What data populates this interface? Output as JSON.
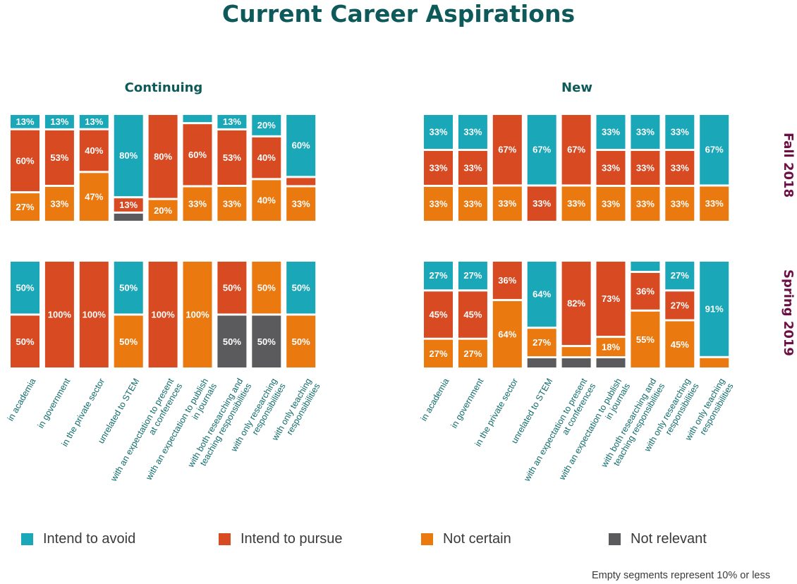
{
  "title": "Current Career Aspirations",
  "footnote": "Empty segments represent 10% or less",
  "colors": {
    "avoid": "#1aa7b8",
    "pursue": "#d74a22",
    "uncertain": "#ea7a10",
    "notrelevant": "#5b5b5d"
  },
  "legend": [
    {
      "key": "avoid",
      "label": "Intend to avoid"
    },
    {
      "key": "pursue",
      "label": "Intend to pursue"
    },
    {
      "key": "uncertain",
      "label": "Not certain"
    },
    {
      "key": "notrelevant",
      "label": "Not relevant"
    }
  ],
  "chart_data": {
    "type": "bar",
    "stacked": true,
    "normalized": true,
    "columns": [
      "Continuing",
      "New"
    ],
    "rows": [
      "Fall 2018",
      "Spring 2019"
    ],
    "categories": [
      "in academia",
      "in government",
      "in the private sector",
      "unrelated to STEM",
      "with an expectation to present\nat conferences",
      "with an expectation to publish\nin journals",
      "with both researching and\nteaching responsibilities",
      "with only researching\nresponsibilities",
      "with only teaching\nresponsibilities"
    ],
    "series_order": [
      "avoid",
      "pursue",
      "uncertain",
      "notrelevant"
    ],
    "panels": [
      {
        "column": "Continuing",
        "row": "Fall 2018",
        "bars": [
          {
            "avoid": 13,
            "pursue": 60,
            "uncertain": 27,
            "notrelevant": 0
          },
          {
            "avoid": 13,
            "pursue": 53,
            "uncertain": 33,
            "notrelevant": 0
          },
          {
            "avoid": 13,
            "pursue": 40,
            "uncertain": 47,
            "notrelevant": 0
          },
          {
            "avoid": 80,
            "pursue": 13,
            "uncertain": 0,
            "notrelevant": 7
          },
          {
            "avoid": 0,
            "pursue": 80,
            "uncertain": 20,
            "notrelevant": 0
          },
          {
            "avoid": 7,
            "pursue": 60,
            "uncertain": 33,
            "notrelevant": 0
          },
          {
            "avoid": 13,
            "pursue": 53,
            "uncertain": 33,
            "notrelevant": 0
          },
          {
            "avoid": 20,
            "pursue": 40,
            "uncertain": 40,
            "notrelevant": 0
          },
          {
            "avoid": 60,
            "pursue": 7,
            "uncertain": 33,
            "notrelevant": 0
          }
        ]
      },
      {
        "column": "New",
        "row": "Fall 2018",
        "bars": [
          {
            "avoid": 33,
            "pursue": 33,
            "uncertain": 33,
            "notrelevant": 0
          },
          {
            "avoid": 33,
            "pursue": 33,
            "uncertain": 33,
            "notrelevant": 0
          },
          {
            "avoid": 0,
            "pursue": 67,
            "uncertain": 33,
            "notrelevant": 0
          },
          {
            "avoid": 67,
            "pursue": 33,
            "uncertain": 0,
            "notrelevant": 0
          },
          {
            "avoid": 0,
            "pursue": 67,
            "uncertain": 33,
            "notrelevant": 0
          },
          {
            "avoid": 33,
            "pursue": 33,
            "uncertain": 33,
            "notrelevant": 0
          },
          {
            "avoid": 33,
            "pursue": 33,
            "uncertain": 33,
            "notrelevant": 0
          },
          {
            "avoid": 33,
            "pursue": 33,
            "uncertain": 33,
            "notrelevant": 0
          },
          {
            "avoid": 67,
            "pursue": 0,
            "uncertain": 33,
            "notrelevant": 0
          }
        ]
      },
      {
        "column": "Continuing",
        "row": "Spring 2019",
        "bars": [
          {
            "avoid": 50,
            "pursue": 50,
            "uncertain": 0,
            "notrelevant": 0
          },
          {
            "avoid": 0,
            "pursue": 100,
            "uncertain": 0,
            "notrelevant": 0
          },
          {
            "avoid": 0,
            "pursue": 100,
            "uncertain": 0,
            "notrelevant": 0
          },
          {
            "avoid": 50,
            "pursue": 0,
            "uncertain": 50,
            "notrelevant": 0
          },
          {
            "avoid": 0,
            "pursue": 100,
            "uncertain": 0,
            "notrelevant": 0
          },
          {
            "avoid": 0,
            "pursue": 0,
            "uncertain": 100,
            "notrelevant": 0
          },
          {
            "avoid": 0,
            "pursue": 50,
            "uncertain": 0,
            "notrelevant": 50
          },
          {
            "avoid": 0,
            "pursue": 0,
            "uncertain": 50,
            "notrelevant": 50
          },
          {
            "avoid": 50,
            "pursue": 0,
            "uncertain": 50,
            "notrelevant": 0
          }
        ]
      },
      {
        "column": "New",
        "row": "Spring 2019",
        "bars": [
          {
            "avoid": 27,
            "pursue": 45,
            "uncertain": 27,
            "notrelevant": 0
          },
          {
            "avoid": 27,
            "pursue": 45,
            "uncertain": 27,
            "notrelevant": 0
          },
          {
            "avoid": 0,
            "pursue": 36,
            "uncertain": 64,
            "notrelevant": 0
          },
          {
            "avoid": 64,
            "pursue": 0,
            "uncertain": 27,
            "notrelevant": 9
          },
          {
            "avoid": 0,
            "pursue": 82,
            "uncertain": 9,
            "notrelevant": 9
          },
          {
            "avoid": 0,
            "pursue": 73,
            "uncertain": 18,
            "notrelevant": 9
          },
          {
            "avoid": 9,
            "pursue": 36,
            "uncertain": 55,
            "notrelevant": 0
          },
          {
            "avoid": 27,
            "pursue": 27,
            "uncertain": 45,
            "notrelevant": 0
          },
          {
            "avoid": 91,
            "pursue": 0,
            "uncertain": 9,
            "notrelevant": 0
          }
        ]
      }
    ]
  }
}
